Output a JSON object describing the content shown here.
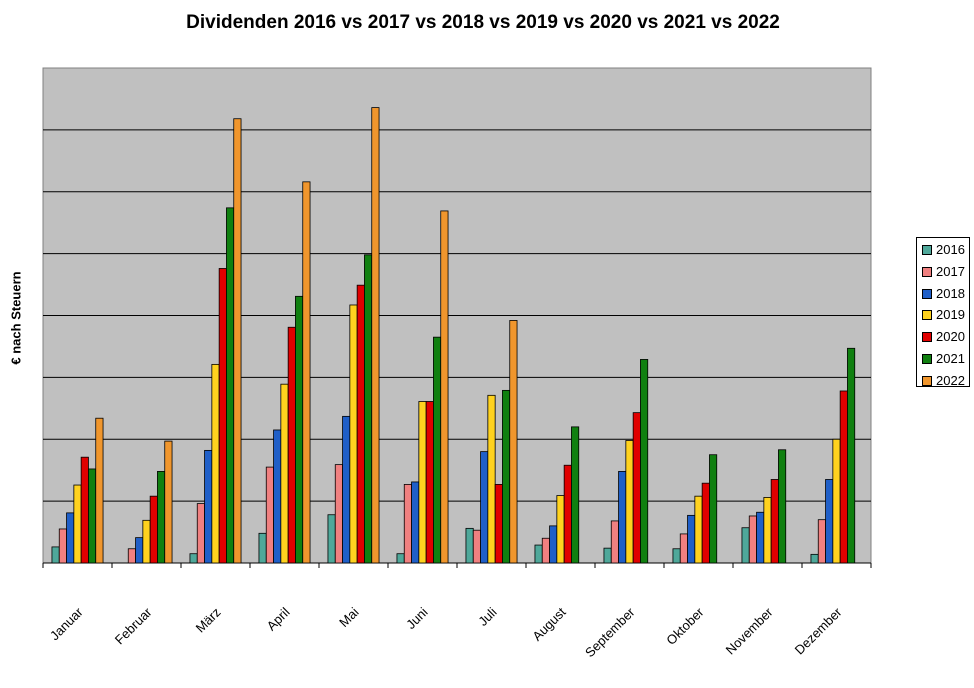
{
  "chart_data": {
    "type": "bar",
    "title": "Dividenden 2016 vs 2017 vs 2018 vs 2019 vs 2020 vs 2021 vs 2022",
    "xlabel": "",
    "ylabel": "€ nach Steuern",
    "ylim": [
      0,
      8
    ],
    "gridlines": 8,
    "grid": true,
    "legend_position": "right",
    "plot_background": "#C0C0C0",
    "categories": [
      "Januar",
      "Februar",
      "März",
      "April",
      "Mai",
      "Juni",
      "Juli",
      "August",
      "September",
      "Oktober",
      "November",
      "Dezember"
    ],
    "series": [
      {
        "name": "2016",
        "color": "#4FA89A",
        "values": [
          0.26,
          0.0,
          0.15,
          0.48,
          0.78,
          0.15,
          0.56,
          0.29,
          0.24,
          0.23,
          0.57,
          0.14
        ]
      },
      {
        "name": "2017",
        "color": "#F08080",
        "values": [
          0.55,
          0.23,
          0.96,
          1.55,
          1.59,
          1.27,
          0.53,
          0.4,
          0.68,
          0.47,
          0.76,
          0.7
        ]
      },
      {
        "name": "2018",
        "color": "#1F5FC8",
        "values": [
          0.81,
          0.41,
          1.82,
          2.15,
          2.37,
          1.31,
          1.8,
          0.6,
          1.48,
          0.77,
          0.82,
          1.35
        ]
      },
      {
        "name": "2019",
        "color": "#FFD21F",
        "values": [
          1.26,
          0.69,
          3.21,
          2.89,
          4.17,
          2.61,
          2.71,
          1.09,
          1.98,
          1.08,
          1.06,
          2.0
        ]
      },
      {
        "name": "2020",
        "color": "#E00000",
        "values": [
          1.71,
          1.08,
          4.76,
          3.81,
          4.49,
          2.61,
          1.27,
          1.58,
          2.43,
          1.29,
          1.35,
          2.78
        ]
      },
      {
        "name": "2021",
        "color": "#108010",
        "values": [
          1.52,
          1.48,
          5.74,
          4.31,
          4.98,
          3.65,
          2.79,
          2.2,
          3.29,
          1.75,
          1.83,
          3.47
        ]
      },
      {
        "name": "2022",
        "color": "#F0962D",
        "values": [
          2.34,
          1.97,
          7.18,
          6.16,
          7.36,
          5.69,
          3.92,
          0,
          0,
          0,
          0,
          0
        ]
      }
    ]
  }
}
